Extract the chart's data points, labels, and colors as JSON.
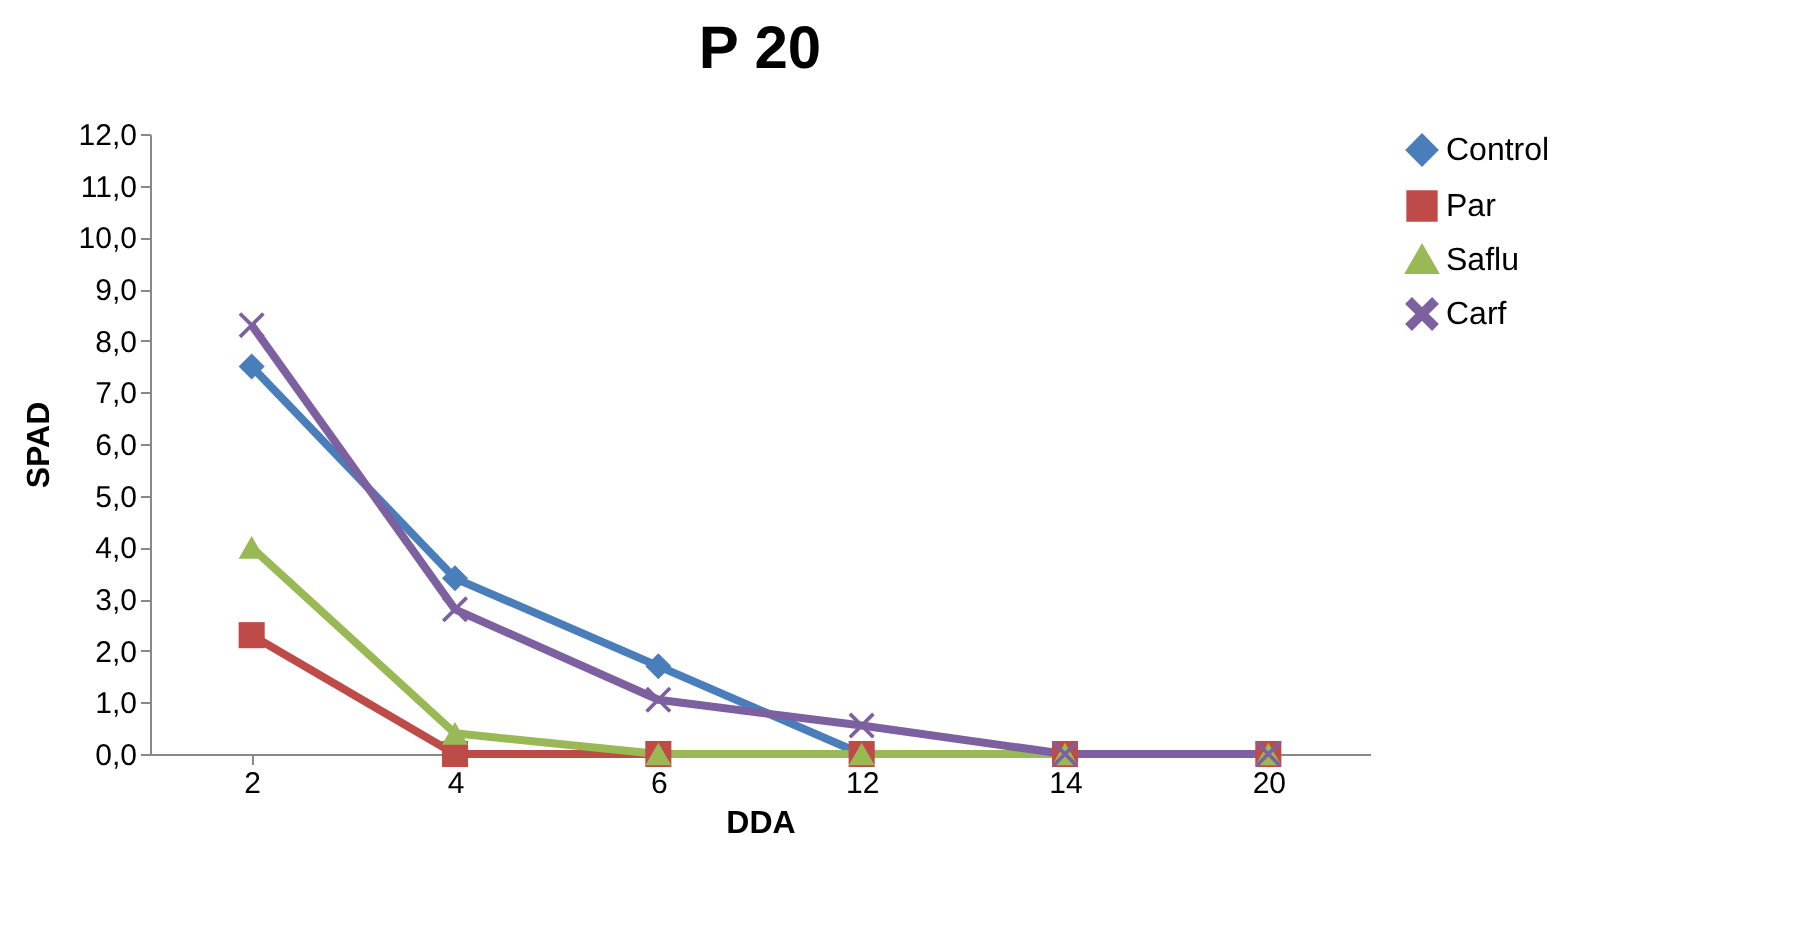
{
  "chart_data": {
    "type": "line",
    "title": "P 20",
    "xlabel": "DDA",
    "ylabel": "SPAD",
    "categories": [
      "2",
      "4",
      "6",
      "12",
      "14",
      "20"
    ],
    "series": [
      {
        "name": "Control",
        "color": "#4a7ebb",
        "marker": "diamond",
        "values": [
          7.5,
          3.4,
          1.7,
          0,
          0,
          0
        ]
      },
      {
        "name": "Par",
        "color": "#be4b48",
        "marker": "square",
        "values": [
          2.3,
          0,
          0,
          0,
          0,
          0
        ]
      },
      {
        "name": "Saflu",
        "color": "#98b954",
        "marker": "triangle",
        "values": [
          4.0,
          0.4,
          0,
          0,
          0,
          0
        ]
      },
      {
        "name": "Carf",
        "color": "#7d60a0",
        "marker": "cross",
        "values": [
          8.3,
          2.8,
          1.05,
          0.55,
          0,
          0
        ]
      }
    ],
    "ylim": [
      0,
      12
    ],
    "yticks": [
      {
        "value": 0,
        "label": "0,0"
      },
      {
        "value": 1,
        "label": "1,0"
      },
      {
        "value": 2,
        "label": "2,0"
      },
      {
        "value": 3,
        "label": "3,0"
      },
      {
        "value": 4,
        "label": "4,0"
      },
      {
        "value": 5,
        "label": "5,0"
      },
      {
        "value": 6,
        "label": "6,0"
      },
      {
        "value": 7,
        "label": "7,0"
      },
      {
        "value": 8,
        "label": "8,0"
      },
      {
        "value": 9,
        "label": "9,0"
      },
      {
        "value": 10,
        "label": "10,0"
      },
      {
        "value": 11,
        "label": "11,0"
      },
      {
        "value": 12,
        "label": "12,0"
      }
    ],
    "grid": false,
    "legend": "right",
    "line_style": "solid"
  }
}
